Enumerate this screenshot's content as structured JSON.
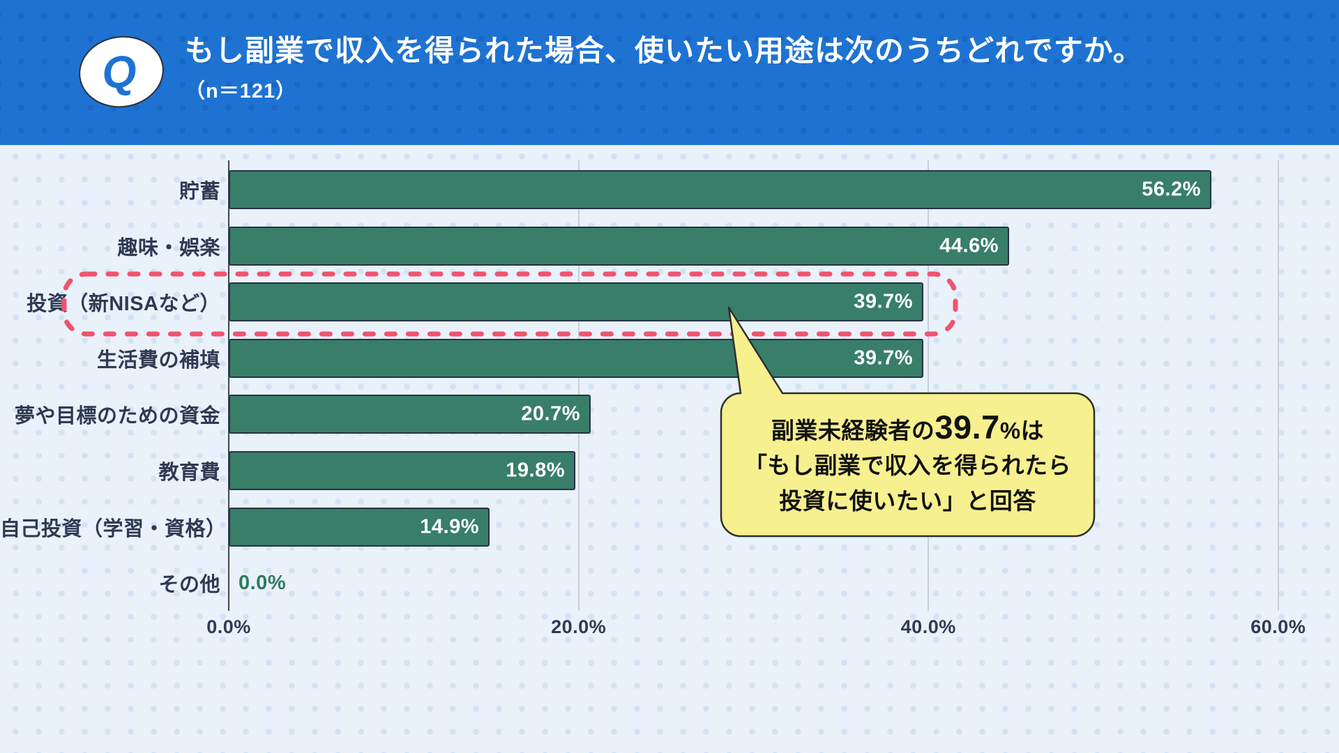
{
  "header": {
    "badge": "Q",
    "title": "もし副業で収入を得られた場合、使いたい用途は次のうちどれですか。",
    "sample_size": "（n＝121）"
  },
  "chart_data": {
    "type": "bar",
    "orientation": "horizontal",
    "title": "もし副業で収入を得られた場合、使いたい用途は次のうちどれですか。",
    "sample_size_n": 121,
    "categories": [
      "貯蓄",
      "趣味・娯楽",
      "投資（新NISAなど）",
      "生活費の補填",
      "夢や目標のための資金",
      "教育費",
      "自己投資（学習・資格）",
      "その他"
    ],
    "values": [
      56.2,
      44.6,
      39.7,
      39.7,
      20.7,
      19.8,
      14.9,
      0.0
    ],
    "value_labels": [
      "56.2%",
      "44.6%",
      "39.7%",
      "39.7%",
      "20.7%",
      "19.8%",
      "14.9%",
      "0.0%"
    ],
    "x_ticks": [
      "0.0%",
      "20.0%",
      "40.0%",
      "60.0%"
    ],
    "x_tick_values": [
      0,
      20,
      40,
      60
    ],
    "xlim": [
      0,
      63
    ],
    "grid": true,
    "bar_color": "#387e69",
    "highlighted_category": "投資（新NISAなど）",
    "highlighted_index": 2
  },
  "callout": {
    "line1_pre": "副業未経験者の",
    "line1_big": "39.7",
    "line1_post": "%は",
    "line2": "「もし副業で収入を得られたら",
    "line3": "投資に使いたい」と回答",
    "bg_color": "#f7f08f"
  },
  "colors": {
    "header_bg": "#1e73d2",
    "body_bg": "#e9f1fa",
    "bar_green": "#387e69",
    "bar_border": "#273247",
    "text_navy": "#2f3a52",
    "highlight_pink": "#f0536e",
    "callout_yellow": "#f7f08f"
  }
}
